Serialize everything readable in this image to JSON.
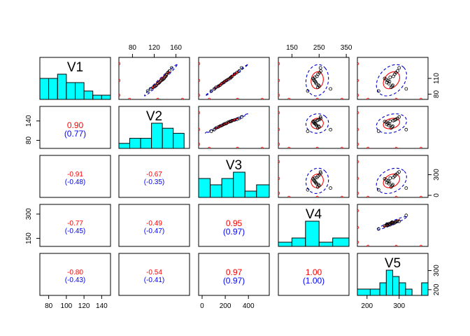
{
  "chart_data": {
    "type": "scatter",
    "variables": [
      "V1",
      "V2",
      "V3",
      "V4",
      "V5"
    ],
    "ranges": {
      "V1": [
        70,
        150
      ],
      "V2": [
        55,
        185
      ],
      "V3": [
        -30,
        580
      ],
      "V4": [
        100,
        360
      ],
      "V5": [
        170,
        390
      ]
    },
    "axis_ticks": {
      "V1": [
        80,
        100,
        120,
        140
      ],
      "V2": [
        80,
        120,
        160
      ],
      "V3": [
        0,
        200,
        400
      ],
      "V4": [
        150,
        250,
        350
      ],
      "V5": [
        200,
        300
      ]
    },
    "axis_ticks_right_labels": {
      "V1": [
        80,
        110
      ],
      "V2": [
        80,
        140
      ],
      "V3": [
        0,
        300
      ],
      "V4": [
        150,
        300
      ],
      "V5": [
        200,
        300
      ]
    },
    "histograms": {
      "V1": {
        "bins": [
          70,
          80,
          90,
          100,
          110,
          120,
          130,
          140,
          150
        ],
        "counts": [
          5,
          5,
          6,
          4,
          4,
          2,
          1,
          1
        ]
      },
      "V2": {
        "bins": [
          55,
          75,
          95,
          115,
          135,
          155,
          175,
          185
        ],
        "counts": [
          1,
          2,
          2,
          5,
          4,
          3,
          0
        ]
      },
      "V3": {
        "bins": [
          -30,
          70,
          170,
          270,
          370,
          470,
          580
        ],
        "counts": [
          3,
          2,
          3,
          4,
          1,
          2
        ]
      },
      "V4": {
        "bins": [
          100,
          150,
          200,
          250,
          300,
          360
        ],
        "counts": [
          1,
          2,
          6,
          1,
          2
        ]
      },
      "V5": {
        "bins": [
          170,
          210,
          240,
          260,
          280,
          300,
          320,
          340,
          370,
          390
        ],
        "counts": [
          1,
          1,
          2,
          4,
          3,
          2,
          1,
          0,
          2
        ]
      }
    },
    "correlations": [
      {
        "row": 2,
        "col": 1,
        "r": "0.90",
        "tau": "(0.77)",
        "big": true
      },
      {
        "row": 3,
        "col": 1,
        "r": "-0.91",
        "tau": "(-0.48)",
        "big": false
      },
      {
        "row": 3,
        "col": 2,
        "r": "-0.67",
        "tau": "(-0.35)",
        "big": false
      },
      {
        "row": 4,
        "col": 1,
        "r": "-0.77",
        "tau": "(-0.45)",
        "big": false
      },
      {
        "row": 4,
        "col": 2,
        "r": "-0.49",
        "tau": "(-0.47)",
        "big": false
      },
      {
        "row": 4,
        "col": 3,
        "r": "0.95",
        "tau": "(0.97)",
        "big": true
      },
      {
        "row": 5,
        "col": 1,
        "r": "-0.80",
        "tau": "(-0.43)",
        "big": false
      },
      {
        "row": 5,
        "col": 2,
        "r": "-0.54",
        "tau": "(-0.41)",
        "big": false
      },
      {
        "row": 5,
        "col": 3,
        "r": "0.97",
        "tau": "(0.97)",
        "big": true
      },
      {
        "row": 5,
        "col": 4,
        "r": "1.00",
        "tau": "(1.00)",
        "big": true
      }
    ],
    "observations": [
      {
        "V1": 93,
        "V2": 118,
        "V3": 120,
        "V4": 245,
        "V5": 275
      },
      {
        "V1": 95,
        "V2": 121,
        "V3": 140,
        "V4": 250,
        "V5": 278
      },
      {
        "V1": 97,
        "V2": 124,
        "V3": 155,
        "V4": 248,
        "V5": 280
      },
      {
        "V1": 100,
        "V2": 126,
        "V3": 170,
        "V4": 240,
        "V5": 268
      },
      {
        "V1": 102,
        "V2": 129,
        "V3": 185,
        "V4": 238,
        "V5": 262
      },
      {
        "V1": 104,
        "V2": 131,
        "V3": 195,
        "V4": 236,
        "V5": 270
      },
      {
        "V1": 106,
        "V2": 133,
        "V3": 210,
        "V4": 232,
        "V5": 265
      },
      {
        "V1": 108,
        "V2": 136,
        "V3": 225,
        "V4": 230,
        "V5": 260
      },
      {
        "V1": 110,
        "V2": 138,
        "V3": 240,
        "V4": 228,
        "V5": 255
      },
      {
        "V1": 112,
        "V2": 139,
        "V3": 250,
        "V4": 234,
        "V5": 272
      },
      {
        "V1": 114,
        "V2": 141,
        "V3": 260,
        "V4": 242,
        "V5": 282
      },
      {
        "V1": 118,
        "V2": 143,
        "V3": 280,
        "V4": 246,
        "V5": 286
      },
      {
        "V1": 121,
        "V2": 145,
        "V3": 300,
        "V4": 252,
        "V5": 290
      },
      {
        "V1": 124,
        "V2": 148,
        "V3": 320,
        "V4": 256,
        "V5": 295
      },
      {
        "V1": 130,
        "V2": 152,
        "V3": 340,
        "V4": 255,
        "V5": 300
      },
      {
        "V1": 86,
        "V2": 108,
        "V3": 80,
        "V4": 208,
        "V5": 236
      },
      {
        "V1": 90,
        "V2": 113,
        "V3": 105,
        "V4": 292,
        "V5": 322
      }
    ],
    "colors": {
      "hist_fill": "#00ffff",
      "ellipse_inner": "#ff0000",
      "ellipse_outer": "#0000cc",
      "corr_main": "#ff0000",
      "corr_paren": "#0000ff",
      "rug": "#ff0000"
    },
    "title": "",
    "xlabel": "",
    "ylabel": "",
    "grid": false,
    "legend": "none"
  }
}
